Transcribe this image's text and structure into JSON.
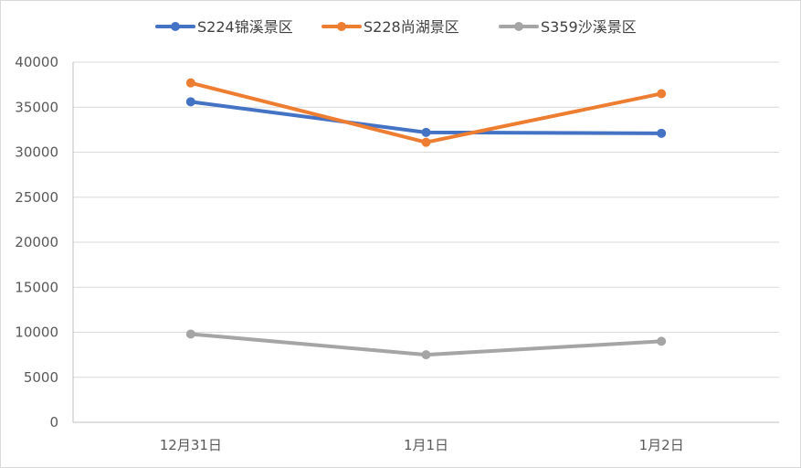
{
  "chart_data": {
    "type": "line",
    "categories": [
      "12月31日",
      "1月1日",
      "1月2日"
    ],
    "series": [
      {
        "name": "S224锦溪景区",
        "color": "#4472C4",
        "values": [
          35600,
          32200,
          32100
        ]
      },
      {
        "name": "S228尚湖景区",
        "color": "#ED7D31",
        "values": [
          37700,
          31100,
          36500
        ]
      },
      {
        "name": "S359沙溪景区",
        "color": "#A5A5A5",
        "values": [
          9800,
          7500,
          9000
        ]
      }
    ],
    "y_ticks": [
      "0",
      "5000",
      "10000",
      "15000",
      "20000",
      "25000",
      "30000",
      "35000",
      "40000"
    ],
    "ylim": [
      0,
      40000
    ],
    "grid": true,
    "legend_position": "top-center",
    "title": "",
    "xlabel": "",
    "ylabel": ""
  }
}
